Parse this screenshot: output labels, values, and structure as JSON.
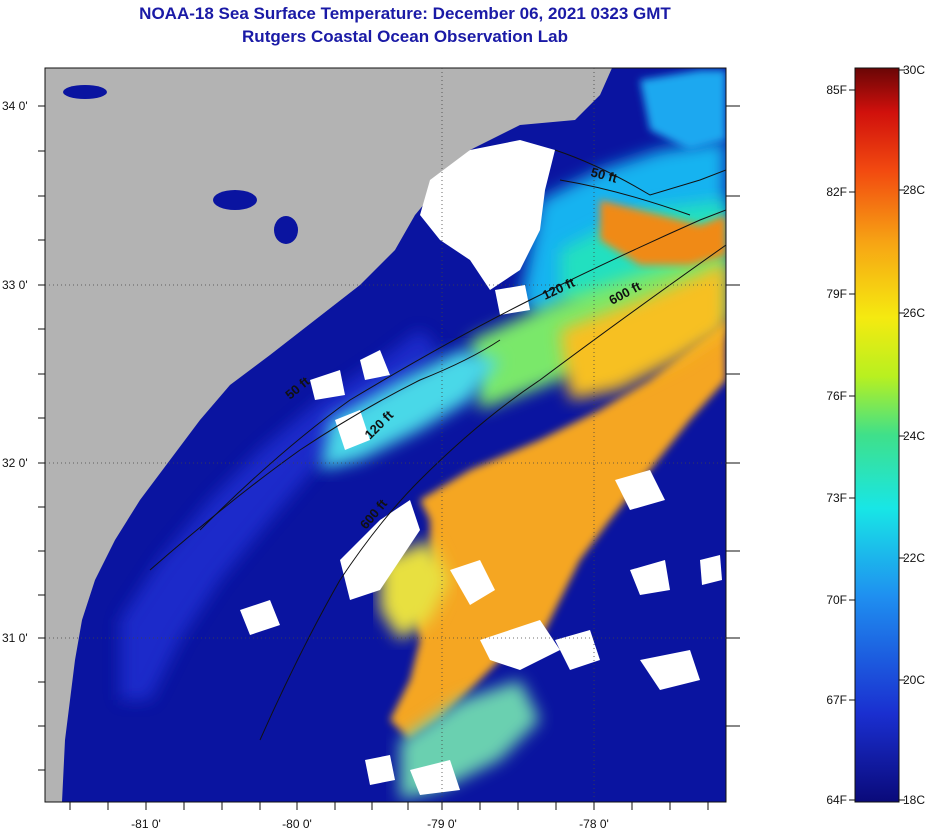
{
  "title": "NOAA-18 Sea Surface Temperature:  December 06, 2021 0323 GMT",
  "subtitle": "Rutgers Coastal Ocean Observation Lab",
  "lat_labels": [
    "34 0'",
    "33 0'",
    "32 0'",
    "31 0'"
  ],
  "lon_labels": [
    "-81 0'",
    "-80 0'",
    "-79 0'",
    "-78 0'"
  ],
  "contours": [
    "50 ft",
    "120 ft",
    "600 ft",
    "50 ft",
    "120 ft",
    "600 ft"
  ],
  "colorbar": {
    "fahrenheit": [
      "85F",
      "82F",
      "79F",
      "76F",
      "73F",
      "70F",
      "67F",
      "64F"
    ],
    "celsius": [
      "30C",
      "28C",
      "26C",
      "24C",
      "22C",
      "20C",
      "18C"
    ]
  },
  "colors": {
    "land": "#b3b3b3",
    "cold": "#0a14a0",
    "warm": "#f5a623",
    "cloud": "#ffffff",
    "title": "#1a1aa6"
  }
}
